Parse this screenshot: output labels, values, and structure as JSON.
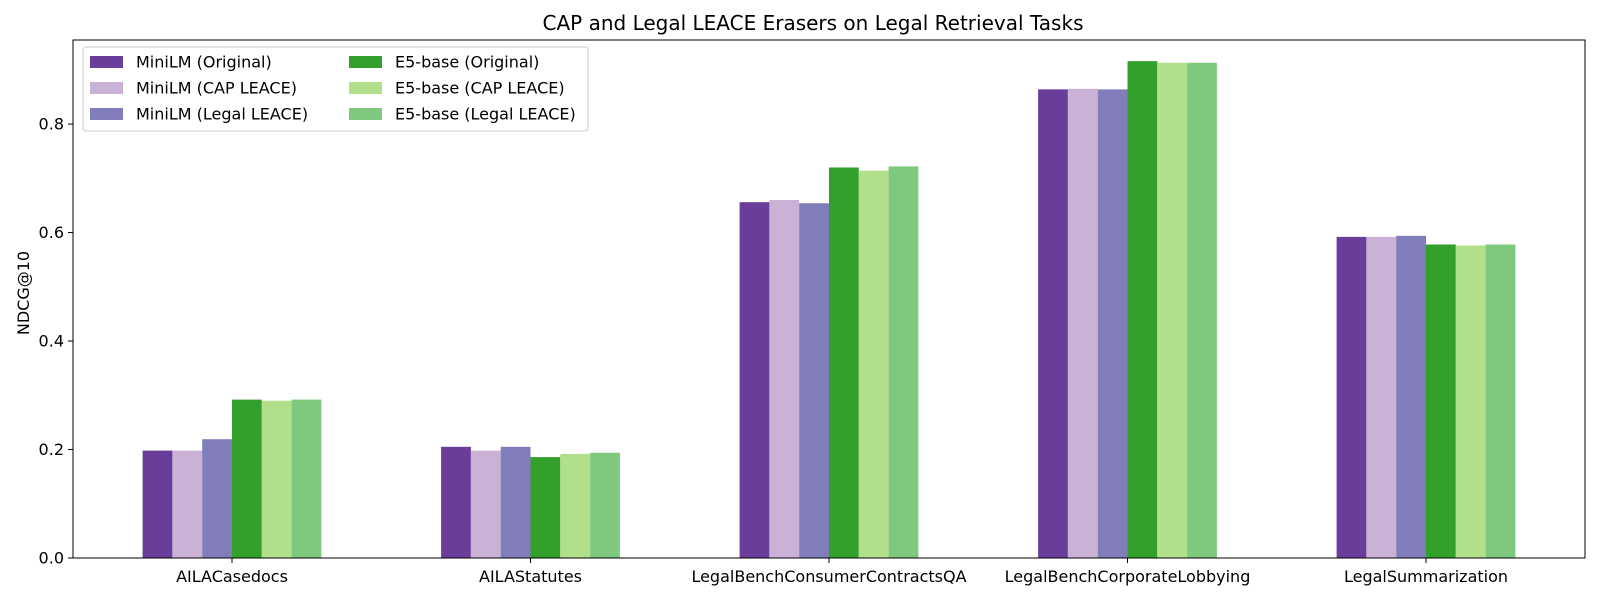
{
  "chart_data": {
    "type": "bar",
    "title": "CAP and Legal LEACE Erasers on Legal Retrieval Tasks",
    "xlabel": "",
    "ylabel": "NDCG@10",
    "ylim": [
      0,
      0.955
    ],
    "yticks": [
      0.0,
      0.2,
      0.4,
      0.6,
      0.8
    ],
    "ytick_labels": [
      "0.0",
      "0.2",
      "0.4",
      "0.6",
      "0.8"
    ],
    "grid": false,
    "legend_position": "top-left",
    "legend_columns": 2,
    "categories": [
      "AILACasedocs",
      "AILAStatutes",
      "LegalBenchConsumerContractsQA",
      "LegalBenchCorporateLobbying",
      "LegalSummarization"
    ],
    "series": [
      {
        "name": "MiniLM (Original)",
        "color": "#6a3d9a",
        "values": [
          0.198,
          0.205,
          0.656,
          0.864,
          0.592
        ]
      },
      {
        "name": "MiniLM (CAP LEACE)",
        "color": "#cab2d6",
        "values": [
          0.198,
          0.198,
          0.66,
          0.865,
          0.592
        ]
      },
      {
        "name": "MiniLM (Legal LEACE)",
        "color": "#807dba",
        "values": [
          0.219,
          0.205,
          0.654,
          0.864,
          0.594
        ]
      },
      {
        "name": "E5-base (Original)",
        "color": "#33a02c",
        "values": [
          0.292,
          0.186,
          0.72,
          0.916,
          0.578
        ]
      },
      {
        "name": "E5-base (CAP LEACE)",
        "color": "#b2df8a",
        "values": [
          0.29,
          0.192,
          0.714,
          0.913,
          0.576
        ]
      },
      {
        "name": "E5-base (Legal LEACE)",
        "color": "#7fc97f",
        "values": [
          0.292,
          0.194,
          0.722,
          0.913,
          0.578
        ]
      }
    ]
  }
}
